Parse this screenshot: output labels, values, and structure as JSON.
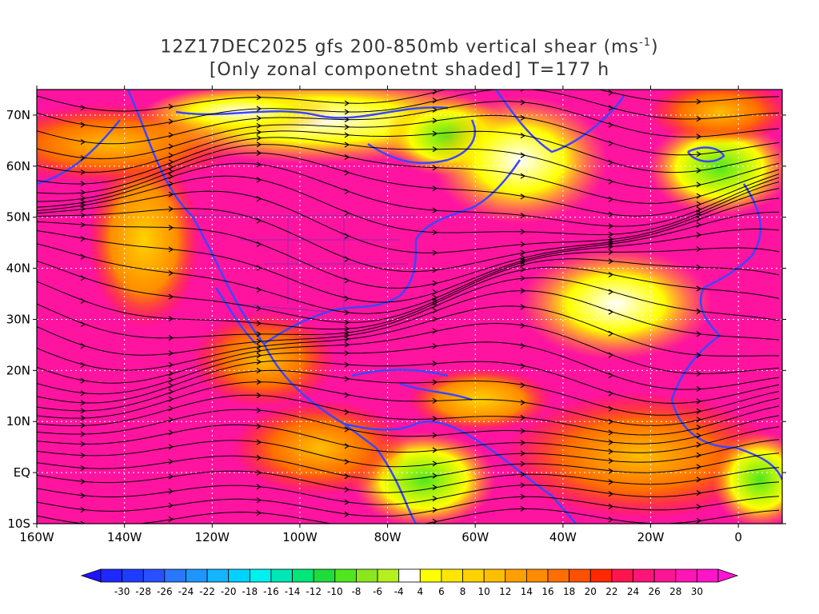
{
  "title": {
    "line1_text": "12Z17DEC2025 gfs 200-850mb vertical shear (ms",
    "line1_sup": "-1",
    "line1_end": ")",
    "line2": "[Only zonal componetnt shaded] T=177 h"
  },
  "map": {
    "lat_labels": [
      "70N",
      "60N",
      "50N",
      "40N",
      "30N",
      "20N",
      "10N",
      "EQ",
      "10S"
    ],
    "lat_values": [
      70,
      60,
      50,
      40,
      30,
      20,
      10,
      0,
      -10
    ],
    "lon_labels": [
      "160W",
      "140W",
      "120W",
      "100W",
      "80W",
      "60W",
      "40W",
      "20W",
      "0"
    ],
    "lon_values": [
      -160,
      -140,
      -120,
      -100,
      -80,
      -60,
      -40,
      -20,
      0
    ],
    "lon_range": [
      -160,
      10
    ],
    "lat_range": [
      -10,
      75
    ]
  },
  "colorbar": {
    "labels": [
      "-30",
      "-28",
      "-26",
      "-24",
      "-22",
      "-20",
      "-18",
      "-16",
      "-14",
      "-12",
      "-10",
      "-8",
      "-6",
      "-4",
      "4",
      "6",
      "8",
      "10",
      "12",
      "14",
      "16",
      "18",
      "20",
      "22",
      "24",
      "26",
      "28",
      "30"
    ],
    "colors": [
      "#1e28ff",
      "#1e3cff",
      "#2850ff",
      "#2878ff",
      "#1e96ff",
      "#14b4ff",
      "#00d2ff",
      "#00f0f0",
      "#00e6b4",
      "#00e678",
      "#1edc3c",
      "#50e61e",
      "#8ce61e",
      "#b4f01e",
      "#ffffff",
      "#ffff00",
      "#ffe600",
      "#ffd200",
      "#ffbe00",
      "#ffa000",
      "#ff8c00",
      "#ff6e00",
      "#ff5000",
      "#ff2800",
      "#ff1450",
      "#ff1478",
      "#ff1496",
      "#ff14b4",
      "#ff14c8"
    ],
    "low_arrow_color": "#1e14ff",
    "high_arrow_color": "#ff14d2"
  },
  "colors": {
    "coast": "#3c46ff",
    "border": "#8c28aa",
    "stream": "#000000",
    "grid": "#ffffff"
  }
}
